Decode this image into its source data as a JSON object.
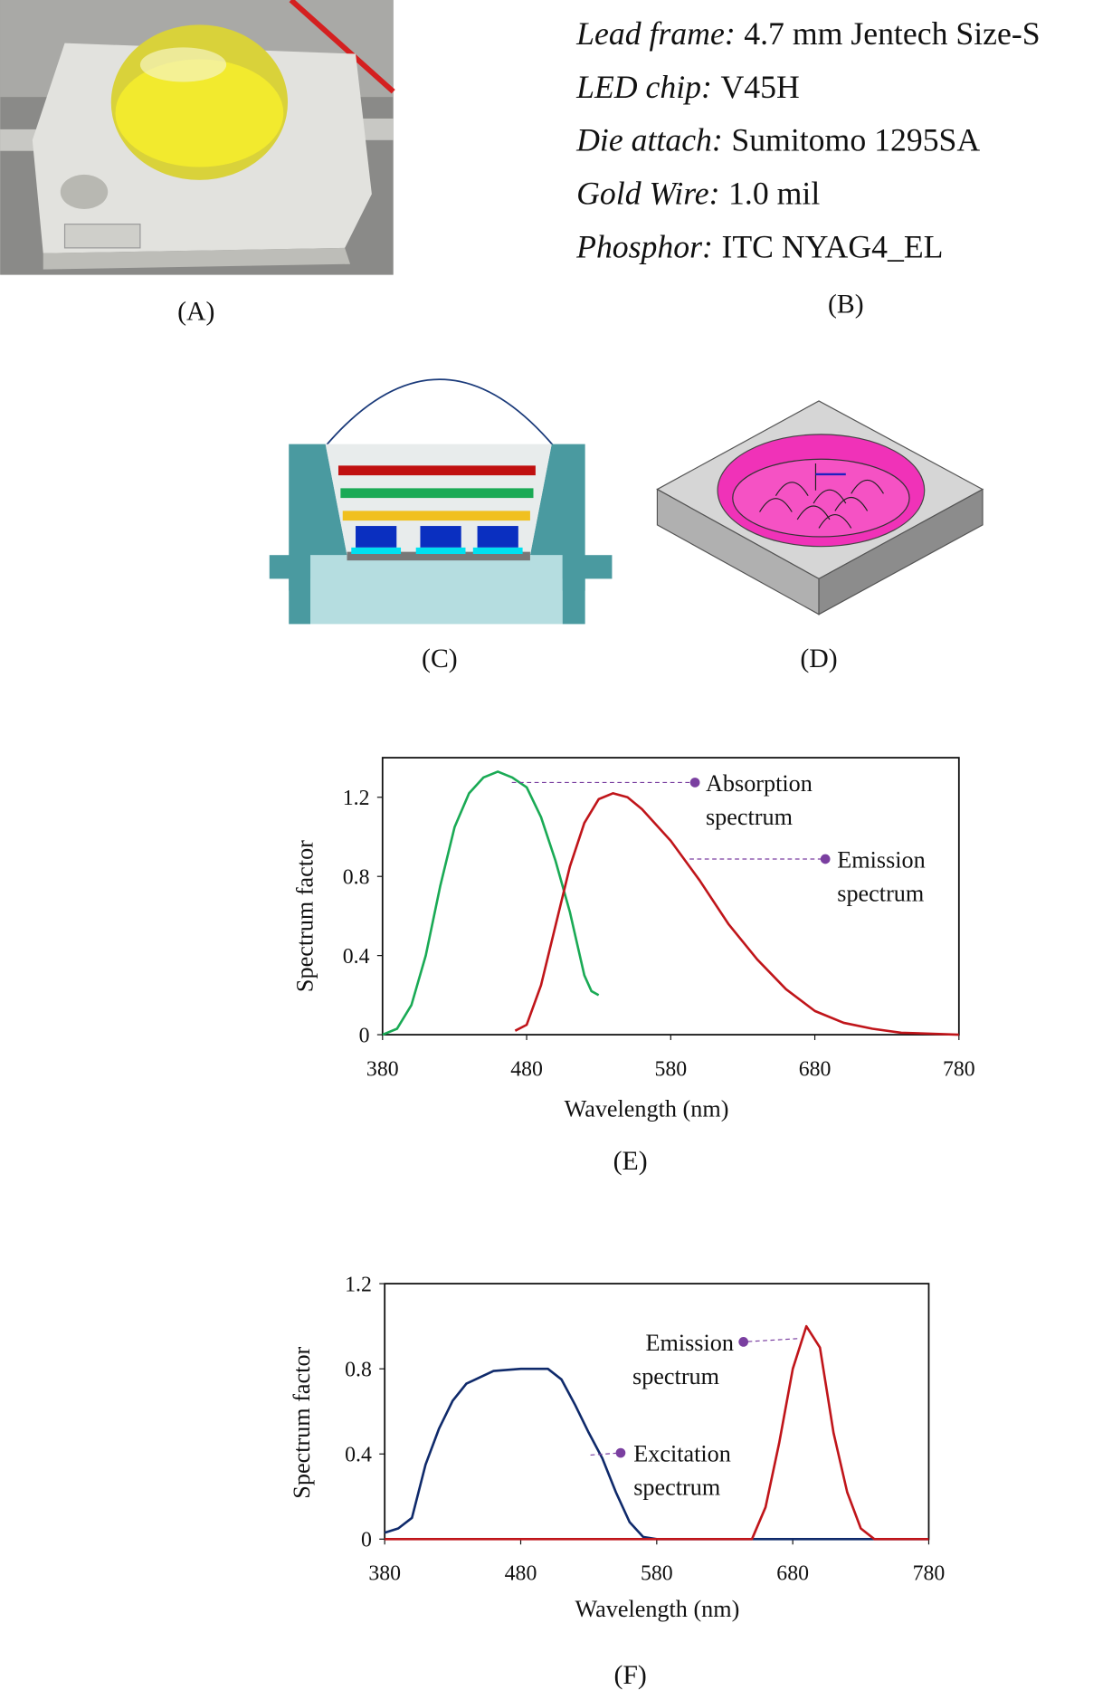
{
  "panels": {
    "A": "(A)",
    "B": "(B)",
    "C": "(C)",
    "D": "(D)",
    "E": "(E)",
    "F": "(F)"
  },
  "specs": [
    {
      "label": "Lead frame:",
      "value": "4.7 mm Jentech Size-S"
    },
    {
      "label": "LED chip:",
      "value": "V45H"
    },
    {
      "label": "Die attach:",
      "value": "Sumitomo 1295SA"
    },
    {
      "label": "Gold Wire:",
      "value": "1.0 mil"
    },
    {
      "label": "Phosphor:",
      "value": "ITC NYAG4_EL"
    }
  ],
  "chart_data": [
    {
      "type": "line",
      "xlabel": "Wavelength (nm)",
      "ylabel": "Spectrum factor",
      "xlim": [
        380,
        780
      ],
      "xticks": [
        380,
        480,
        580,
        680,
        780
      ],
      "ylim": [
        0,
        1.4
      ],
      "yticks": [
        0,
        0.4,
        0.8,
        1.2
      ],
      "series": [
        {
          "color": "#1aaa55",
          "x": [
            380,
            390,
            400,
            410,
            420,
            430,
            440,
            450,
            460,
            470,
            480,
            490,
            500,
            510,
            520,
            525,
            530
          ],
          "values": [
            0,
            0.03,
            0.15,
            0.4,
            0.75,
            1.05,
            1.22,
            1.3,
            1.33,
            1.3,
            1.25,
            1.1,
            0.88,
            0.62,
            0.3,
            0.22,
            0.2
          ]
        },
        {
          "color": "#c0151a",
          "x": [
            472,
            480,
            490,
            500,
            510,
            520,
            530,
            540,
            550,
            560,
            580,
            600,
            620,
            640,
            660,
            680,
            700,
            720,
            740,
            780
          ],
          "values": [
            0.02,
            0.05,
            0.25,
            0.55,
            0.85,
            1.07,
            1.19,
            1.22,
            1.2,
            1.14,
            0.98,
            0.78,
            0.56,
            0.38,
            0.23,
            0.12,
            0.06,
            0.03,
            0.01,
            0
          ]
        }
      ],
      "annotations": [
        {
          "lines": [
            "Absorption",
            "spectrum"
          ]
        },
        {
          "lines": [
            "Emission",
            "spectrum"
          ]
        }
      ]
    },
    {
      "type": "line",
      "xlabel": "Wavelength (nm)",
      "ylabel": "Spectrum factor",
      "xlim": [
        380,
        780
      ],
      "xticks": [
        380,
        480,
        580,
        680,
        780
      ],
      "ylim": [
        0,
        1.2
      ],
      "yticks": [
        0,
        0.4,
        0.8,
        1.2
      ],
      "series": [
        {
          "color": "#0f2a6b",
          "x": [
            380,
            390,
            400,
            410,
            420,
            430,
            440,
            450,
            460,
            480,
            500,
            510,
            520,
            530,
            540,
            550,
            560,
            570,
            580,
            780
          ],
          "values": [
            0.03,
            0.05,
            0.1,
            0.35,
            0.52,
            0.65,
            0.73,
            0.76,
            0.79,
            0.8,
            0.8,
            0.75,
            0.63,
            0.5,
            0.38,
            0.22,
            0.08,
            0.01,
            0,
            0
          ]
        },
        {
          "color": "#c0151a",
          "x": [
            380,
            650,
            660,
            670,
            680,
            690,
            700,
            710,
            720,
            730,
            740,
            780
          ],
          "values": [
            0,
            0,
            0.15,
            0.45,
            0.8,
            1.0,
            0.9,
            0.5,
            0.22,
            0.05,
            0,
            0
          ]
        }
      ],
      "annotations": [
        {
          "lines": [
            "Emission",
            "spectrum"
          ]
        },
        {
          "lines": [
            "Excitation",
            "spectrum"
          ]
        }
      ]
    }
  ]
}
